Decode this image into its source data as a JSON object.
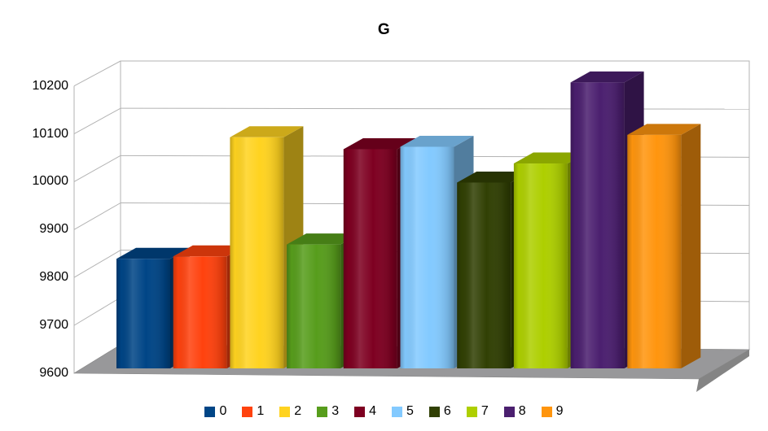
{
  "title": "G",
  "chart_data": {
    "type": "bar",
    "style": "3d-column",
    "title": "G",
    "categories": [
      "0",
      "1",
      "2",
      "3",
      "4",
      "5",
      "6",
      "7",
      "8",
      "9"
    ],
    "values": [
      9830,
      9835,
      10085,
      9860,
      10060,
      10065,
      9990,
      10030,
      10200,
      10090
    ],
    "series_colors": [
      "#004586",
      "#FF420E",
      "#FFD320",
      "#579D1C",
      "#7E0021",
      "#83CAFF",
      "#314004",
      "#AECF00",
      "#4B1F6F",
      "#FF950E"
    ],
    "xlabel": "",
    "ylabel": "",
    "ylim": [
      9600,
      10200
    ],
    "ytick_step": 100,
    "ytick_labels": [
      "10200",
      "10100",
      "10000",
      "9900",
      "9800",
      "9700",
      "9600"
    ],
    "grid": true,
    "legend_position": "bottom",
    "legend_labels": [
      "0",
      "1",
      "2",
      "3",
      "4",
      "5",
      "6",
      "7",
      "8",
      "9"
    ]
  },
  "colors": {
    "background": "#ffffff",
    "grid": "#b3b3b3",
    "floor_top": "#98989a",
    "floor_side": "#848484",
    "text": "#000000"
  }
}
